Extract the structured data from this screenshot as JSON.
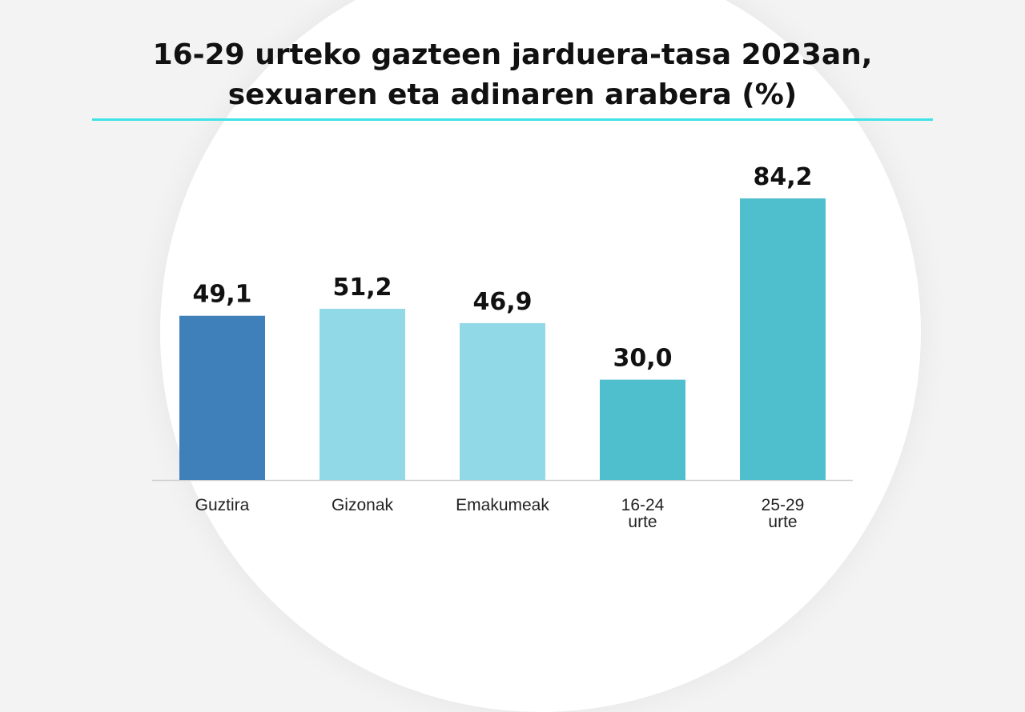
{
  "page": {
    "title_lines": [
      "16-29 urteko gazteen jarduera-tasa 2023an,",
      "sexuaren eta adinaren arabera (%)"
    ],
    "accent_color": "#3fe3e6"
  },
  "chart_data": {
    "type": "bar",
    "title": "16-29 urteko gazteen jarduera-tasa 2023an, sexuaren eta adinaren arabera (%)",
    "xlabel": "",
    "ylabel": "",
    "ylim": [
      0,
      100
    ],
    "grid": false,
    "legend": "none",
    "categories": [
      [
        "Guztira"
      ],
      [
        "Gizonak"
      ],
      [
        "Emakumeak"
      ],
      [
        "16-24",
        "urte"
      ],
      [
        "25-29",
        "urte"
      ]
    ],
    "values": [
      49.1,
      51.2,
      46.9,
      30.0,
      84.2
    ],
    "value_labels": [
      "49,1",
      "51,2",
      "46,9",
      "30,0",
      "84,2"
    ],
    "colors": [
      "#3f7fba",
      "#91d9e6",
      "#91d9e6",
      "#4fbfce",
      "#4fbfce"
    ]
  }
}
